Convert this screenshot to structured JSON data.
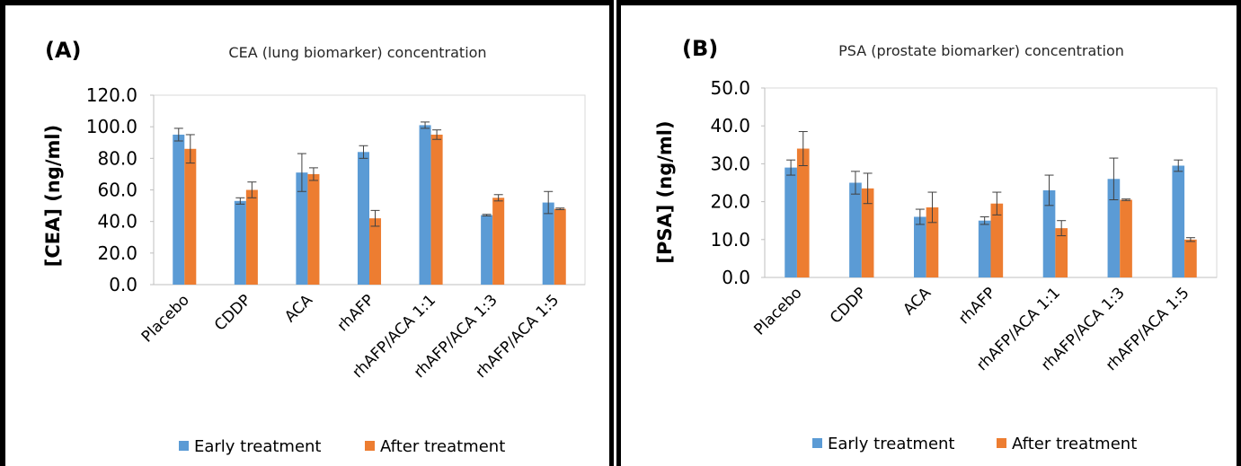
{
  "legend": {
    "early_label": "Early treatment",
    "after_label": "After treatment"
  },
  "colors": {
    "early": "#5B9BD5",
    "after": "#ED7D31",
    "axis": "#bfbfbf",
    "error": "#404040"
  },
  "chart_data": [
    {
      "type": "bar",
      "panel_label": "(A)",
      "title": "CEA (lung biomarker) concentration",
      "ylabel": "[CEA] (ng/ml)",
      "xlabel": "",
      "ylim": [
        0,
        120
      ],
      "yticks": [
        "0.0",
        "20.0",
        "40.0",
        "60.0",
        "80.0",
        "100.0",
        "120.0"
      ],
      "grid": false,
      "legend_position": "bottom",
      "categories": [
        "Placebo",
        "CDDP",
        "ACA",
        "rhAFP",
        "rhAFP/ACA 1:1",
        "rhAFP/ACA 1:3",
        "rhAFP/ACA 1:5"
      ],
      "series": [
        {
          "name": "Early treatment",
          "values": [
            95,
            53,
            71,
            84,
            101,
            44,
            52
          ],
          "errors": [
            4,
            2,
            12,
            4,
            2,
            0.5,
            7
          ]
        },
        {
          "name": "After treatment",
          "values": [
            86,
            60,
            70,
            42,
            95,
            55,
            48
          ],
          "errors": [
            9,
            5,
            4,
            5,
            3,
            2,
            0.5
          ]
        }
      ]
    },
    {
      "type": "bar",
      "panel_label": "(B)",
      "title": "PSA (prostate biomarker) concentration",
      "ylabel": "[PSA] (ng/ml)",
      "xlabel": "",
      "ylim": [
        0,
        50
      ],
      "yticks": [
        "0.0",
        "10.0",
        "20.0",
        "30.0",
        "40.0",
        "50.0"
      ],
      "grid": false,
      "legend_position": "bottom",
      "categories": [
        "Placebo",
        "CDDP",
        "ACA",
        "rhAFP",
        "rhAFP/ACA 1:1",
        "rhAFP/ACA 1:3",
        "rhAFP/ACA 1:5"
      ],
      "series": [
        {
          "name": "Early treatment",
          "values": [
            29,
            25,
            16,
            15,
            23,
            26,
            29.5
          ],
          "errors": [
            2,
            3,
            2,
            1,
            4,
            5.5,
            1.5
          ]
        },
        {
          "name": "After treatment",
          "values": [
            34,
            23.5,
            18.5,
            19.5,
            13,
            20.5,
            10
          ],
          "errors": [
            4.5,
            4,
            4,
            3,
            2,
            0.2,
            0.5
          ]
        }
      ]
    }
  ]
}
